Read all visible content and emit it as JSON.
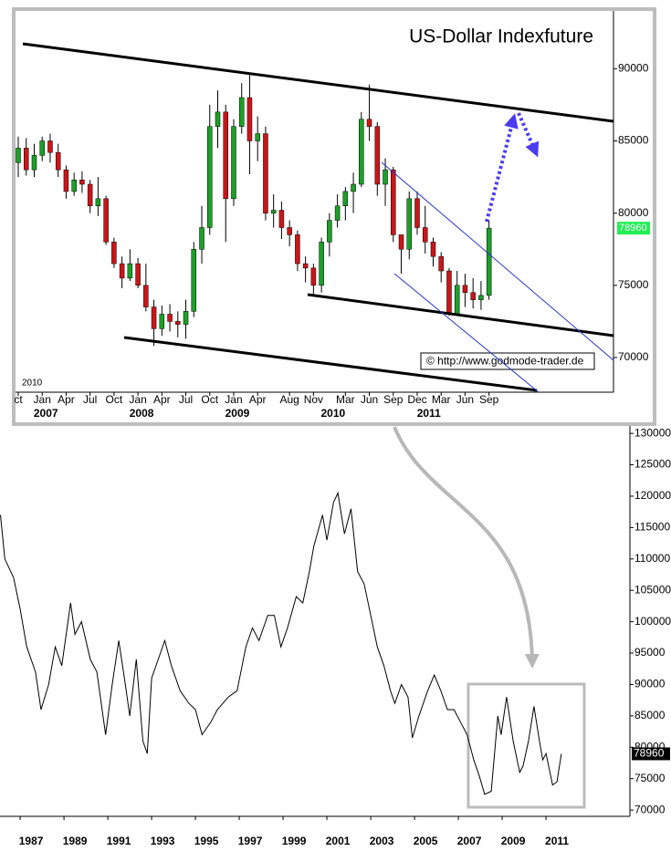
{
  "chart_data": [
    {
      "type": "candlestick",
      "title": "US-Dollar Indexfuture",
      "x": [
        "2006-10",
        "2006-11",
        "2006-12",
        "2007-01",
        "2007-02",
        "2007-03",
        "2007-04",
        "2007-05",
        "2007-06",
        "2007-07",
        "2007-08",
        "2007-09",
        "2007-10",
        "2007-11",
        "2007-12",
        "2008-01",
        "2008-02",
        "2008-03",
        "2008-04",
        "2008-05",
        "2008-06",
        "2008-07",
        "2008-08",
        "2008-09",
        "2008-10",
        "2008-11",
        "2008-12",
        "2009-01",
        "2009-02",
        "2009-03",
        "2009-04",
        "2009-05",
        "2009-06",
        "2009-07",
        "2009-08",
        "2009-09",
        "2009-10",
        "2009-11",
        "2009-12",
        "2010-01",
        "2010-02",
        "2010-03",
        "2010-04",
        "2010-05",
        "2010-06",
        "2010-07",
        "2010-08",
        "2010-09",
        "2010-10",
        "2010-11",
        "2010-12",
        "2011-01",
        "2011-02",
        "2011-03",
        "2011-04",
        "2011-05",
        "2011-06",
        "2011-07",
        "2011-08",
        "2011-09"
      ],
      "open": [
        83500,
        84500,
        83000,
        84000,
        85000,
        84200,
        83000,
        81500,
        82300,
        82000,
        80500,
        81000,
        78000,
        76500,
        75500,
        76500,
        75000,
        73500,
        72000,
        73000,
        72500,
        72300,
        73200,
        77500,
        79000,
        86000,
        87000,
        81000,
        86000,
        88000,
        85000,
        85500,
        80000,
        80200,
        79000,
        78500,
        76500,
        76200,
        75000,
        78000,
        79500,
        80500,
        81500,
        82000,
        86500,
        86000,
        82000,
        83000,
        78500,
        77500,
        81000,
        79000,
        78000,
        77000,
        76000,
        73000,
        75000,
        74500,
        74000,
        74300
      ],
      "high": [
        85300,
        85200,
        84800,
        85300,
        85500,
        84800,
        83300,
        82800,
        82900,
        82300,
        82500,
        81200,
        78300,
        77000,
        77500,
        76900,
        76500,
        74000,
        73600,
        73700,
        73200,
        74000,
        78000,
        80500,
        87500,
        88500,
        87500,
        86500,
        89000,
        89600,
        86700,
        86000,
        81300,
        80800,
        79500,
        78800,
        77000,
        76500,
        78300,
        80000,
        81300,
        81800,
        82800,
        87000,
        88900,
        86300,
        83800,
        83200,
        78500,
        81500,
        81500,
        80500,
        78300,
        77300,
        76200,
        76000,
        75800,
        75500,
        75300,
        79500
      ],
      "low": [
        82500,
        82600,
        82500,
        83600,
        83500,
        82500,
        81000,
        81200,
        81400,
        80000,
        79800,
        77800,
        76200,
        74800,
        75300,
        74800,
        73200,
        70800,
        71500,
        71800,
        71400,
        71300,
        72800,
        76500,
        78500,
        84500,
        78000,
        80500,
        85500,
        82700,
        83600,
        79500,
        79000,
        78200,
        77700,
        76000,
        75200,
        74300,
        74500,
        77000,
        79000,
        79500,
        80000,
        81800,
        85000,
        81200,
        80500,
        78000,
        75800,
        76800,
        78500,
        77200,
        76300,
        75200,
        72900,
        72900,
        73500,
        73400,
        73300,
        74000
      ],
      "close": [
        84500,
        83000,
        84000,
        85000,
        84200,
        83000,
        81500,
        82300,
        82000,
        80500,
        81000,
        78000,
        76500,
        75500,
        76500,
        75000,
        73500,
        72000,
        73000,
        72500,
        72300,
        73200,
        77500,
        79000,
        86000,
        87000,
        81000,
        86000,
        88000,
        85000,
        85500,
        80000,
        80200,
        79000,
        78500,
        76500,
        76200,
        75000,
        78000,
        79500,
        80500,
        81500,
        82000,
        86500,
        86000,
        82000,
        83000,
        78500,
        77500,
        81000,
        79000,
        78000,
        77000,
        76000,
        73000,
        75000,
        74500,
        74000,
        74300,
        78960
      ],
      "up_color": "#1e9e2a",
      "down_color": "#c8171a",
      "ylim": [
        67600,
        94000
      ],
      "yticks": [
        70000,
        75000,
        80000,
        85000,
        90000
      ],
      "xticks": [
        {
          "value": "2006-10",
          "label": "ct"
        },
        {
          "value": "2007-01",
          "label": "Jan"
        },
        {
          "value": "2007-04",
          "label": "Apr"
        },
        {
          "value": "2007-07",
          "label": "Jul"
        },
        {
          "value": "2007-10",
          "label": "Oct"
        },
        {
          "value": "2008-01",
          "label": "Jan"
        },
        {
          "value": "2008-04",
          "label": "Apr"
        },
        {
          "value": "2008-07",
          "label": "Jul"
        },
        {
          "value": "2008-10",
          "label": "Oct"
        },
        {
          "value": "2009-01",
          "label": "Jan"
        },
        {
          "value": "2009-04",
          "label": "Apr"
        },
        {
          "value": "2009-08",
          "label": "Aug"
        },
        {
          "value": "2009-11",
          "label": "Nov"
        },
        {
          "value": "2010-03",
          "label": "Mar"
        },
        {
          "value": "2010-06",
          "label": "Jun"
        },
        {
          "value": "2010-09",
          "label": "Sep"
        },
        {
          "value": "2010-12",
          "label": "Dec"
        },
        {
          "value": "2011-03",
          "label": "Mar"
        },
        {
          "value": "2011-06",
          "label": "Jun"
        },
        {
          "value": "2011-09",
          "label": "Sep"
        }
      ],
      "year_labels": [
        {
          "value": "2007-01",
          "label": "2007"
        },
        {
          "value": "2008-01",
          "label": "2008"
        },
        {
          "value": "2009-01",
          "label": "2009"
        },
        {
          "value": "2010-01",
          "label": "2010"
        },
        {
          "value": "2011-01",
          "label": "2011"
        }
      ],
      "last_value": 78960,
      "last_value_color": "#22ee55",
      "corner_text": "2010",
      "source": "© http://www.godmode-trader.de"
    },
    {
      "type": "line",
      "color": "#000000",
      "x": [
        1986.1,
        1986.3,
        1986.7,
        1987.0,
        1987.3,
        1987.7,
        1987.95,
        1988.3,
        1988.6,
        1988.9,
        1989.3,
        1989.5,
        1989.8,
        1990.2,
        1990.5,
        1990.9,
        1991.2,
        1991.5,
        1991.8,
        1992.0,
        1992.3,
        1992.6,
        1992.8,
        1993.0,
        1993.4,
        1993.6,
        1993.9,
        1994.3,
        1994.7,
        1995.0,
        1995.3,
        1995.7,
        1996.0,
        1996.5,
        1996.9,
        1997.3,
        1997.6,
        1997.9,
        1998.3,
        1998.6,
        1998.9,
        1999.2,
        1999.6,
        1999.9,
        2000.2,
        2000.4,
        2000.8,
        2001.0,
        2001.3,
        2001.5,
        2001.8,
        2002.1,
        2002.4,
        2002.7,
        2003.0,
        2003.3,
        2003.6,
        2003.9,
        2004.1,
        2004.4,
        2004.7,
        2004.9,
        2005.2,
        2005.6,
        2005.9,
        2006.2,
        2006.5,
        2006.8,
        2007.1,
        2007.4,
        2007.7,
        2007.95,
        2008.2,
        2008.5,
        2008.8,
        2008.95,
        2009.2,
        2009.5,
        2009.8,
        2009.95,
        2010.2,
        2010.45,
        2010.7,
        2010.85,
        2011.0,
        2011.3,
        2011.5,
        2011.7
      ],
      "values": [
        117000,
        110000,
        107000,
        102000,
        96000,
        92000,
        86000,
        90000,
        96000,
        93000,
        103000,
        98000,
        100000,
        94000,
        92000,
        82000,
        90000,
        97000,
        90000,
        85000,
        94000,
        81000,
        79000,
        91000,
        95000,
        97000,
        93000,
        89000,
        87000,
        86000,
        82000,
        84000,
        86000,
        88000,
        89000,
        96000,
        99000,
        97000,
        101000,
        101000,
        96000,
        99000,
        104000,
        103000,
        108000,
        112000,
        117000,
        113000,
        119000,
        120500,
        114000,
        118000,
        108000,
        106000,
        101000,
        96000,
        93000,
        89000,
        87000,
        90000,
        88000,
        81500,
        85000,
        89000,
        91500,
        89000,
        86000,
        86000,
        84000,
        82000,
        78000,
        75500,
        72500,
        73000,
        85000,
        82000,
        88000,
        81000,
        76000,
        77000,
        81000,
        86500,
        81000,
        78000,
        79000,
        74000,
        74500,
        78960
      ],
      "xlim": [
        1986.08,
        2014.83
      ],
      "ylim": [
        69000,
        132200
      ],
      "xticks": [
        1987,
        1989,
        1991,
        1993,
        1995,
        1997,
        1999,
        2001,
        2003,
        2005,
        2007,
        2009,
        2011
      ],
      "yticks": [
        70000,
        75000,
        80000,
        85000,
        90000,
        95000,
        100000,
        105000,
        110000,
        115000,
        120000,
        125000,
        130000
      ],
      "last_value": 78960
    }
  ]
}
